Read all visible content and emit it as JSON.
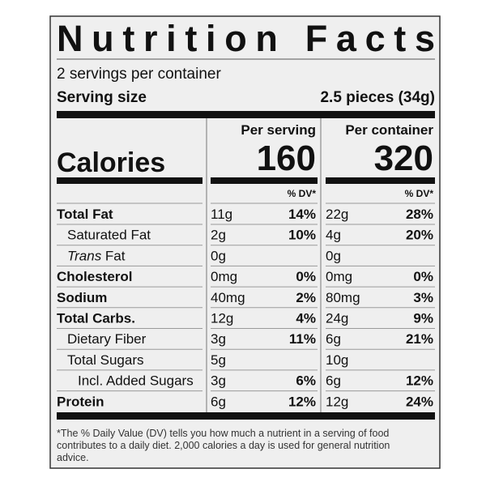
{
  "header": {
    "title": "Nutrition Facts",
    "servings": "2 servings per container",
    "serving_size_label": "Serving size",
    "serving_size": "2.5 pieces (34g)"
  },
  "calories_label": "Calories",
  "columns": [
    {
      "heading": "Per serving",
      "calories": "160",
      "dv_heading": "% DV*"
    },
    {
      "heading": "Per container",
      "calories": "320",
      "dv_heading": "% DV*"
    }
  ],
  "rows": [
    {
      "label": "Total Fat",
      "bold": true,
      "indent": 0,
      "amounts": [
        "11g",
        "22g"
      ],
      "dv": [
        "14%",
        "28%"
      ]
    },
    {
      "label": "Saturated Fat",
      "bold": false,
      "indent": 1,
      "amounts": [
        "2g",
        "4g"
      ],
      "dv": [
        "10%",
        "20%"
      ]
    },
    {
      "label_italic": "Trans",
      "label": " Fat",
      "bold": false,
      "indent": 1,
      "amounts": [
        "0g",
        "0g"
      ],
      "dv": [
        null,
        null
      ]
    },
    {
      "label": "Cholesterol",
      "bold": true,
      "indent": 0,
      "amounts": [
        "0mg",
        "0mg"
      ],
      "dv": [
        "0%",
        "0%"
      ]
    },
    {
      "label": "Sodium",
      "bold": true,
      "indent": 0,
      "amounts": [
        "40mg",
        "80mg"
      ],
      "dv": [
        "2%",
        "3%"
      ]
    },
    {
      "label": "Total Carbs.",
      "bold": true,
      "indent": 0,
      "amounts": [
        "12g",
        "24g"
      ],
      "dv": [
        "4%",
        "9%"
      ]
    },
    {
      "label": "Dietary Fiber",
      "bold": false,
      "indent": 1,
      "amounts": [
        "3g",
        "6g"
      ],
      "dv": [
        "11%",
        "21%"
      ]
    },
    {
      "label": "Total Sugars",
      "bold": false,
      "indent": 1,
      "amounts": [
        "5g",
        "10g"
      ],
      "dv": [
        null,
        null
      ]
    },
    {
      "label": "Incl. Added Sugars",
      "bold": false,
      "indent": 2,
      "amounts": [
        "3g",
        "6g"
      ],
      "dv": [
        "6%",
        "12%"
      ]
    },
    {
      "label": "Protein",
      "bold": true,
      "indent": 0,
      "amounts": [
        "6g",
        "12g"
      ],
      "dv": [
        "12%",
        "24%"
      ]
    }
  ],
  "footnote": [
    "*The % Daily Value (DV) tells you how much a nutrient in a serving of food",
    "contributes to a daily diet. 2,000 calories a day is used for general nutrition",
    "advice."
  ]
}
